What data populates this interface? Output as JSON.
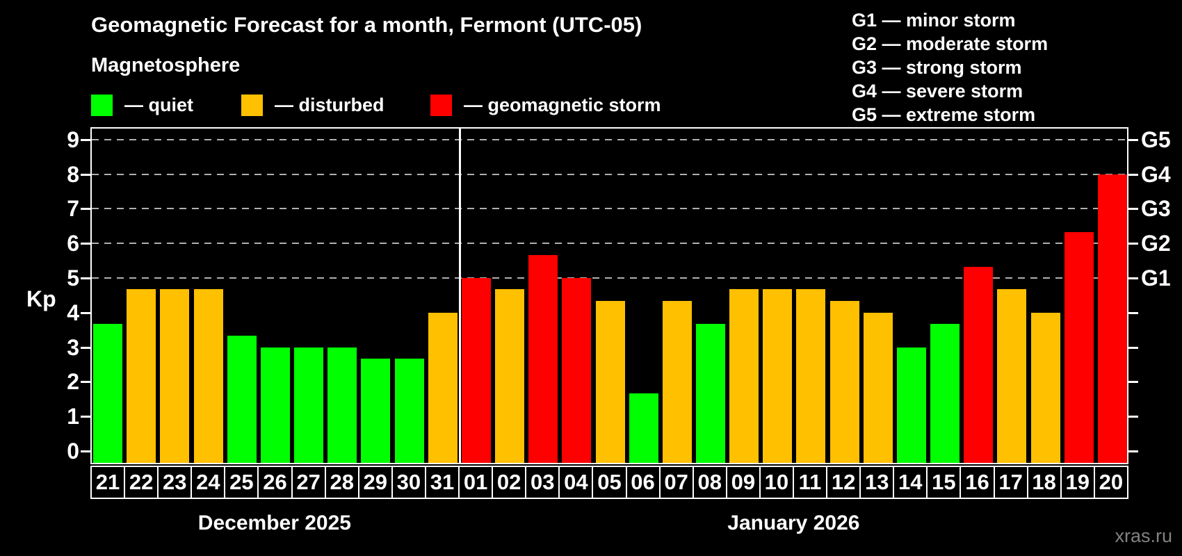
{
  "title": "Geomagnetic Forecast for a month, Fermont (UTC-05)",
  "subtitle": "Magnetosphere",
  "legend": {
    "items": [
      {
        "key": "quiet",
        "label": "— quiet",
        "color": "#00ff00",
        "x": 0
      },
      {
        "key": "disturbed",
        "label": "— disturbed",
        "color": "#ffc000",
        "x": 216
      },
      {
        "key": "storm",
        "label": "— geomagnetic storm",
        "color": "#ff0000",
        "x": 488
      }
    ]
  },
  "g_scale_legend": [
    "G1 — minor storm",
    "G2 — moderate storm",
    "G3 — strong storm",
    "G4 — severe storm",
    "G5 — extreme storm"
  ],
  "watermark": "xras.ru",
  "chart_data": {
    "type": "bar",
    "ylabel": "Kp",
    "ylim": [
      0,
      9
    ],
    "yticks": [
      0,
      1,
      2,
      3,
      4,
      5,
      6,
      7,
      8,
      9
    ],
    "gridlines_at": [
      5,
      6,
      7,
      8,
      9
    ],
    "right_axis_labels": [
      {
        "kp": 5,
        "label": "G1"
      },
      {
        "kp": 6,
        "label": "G2"
      },
      {
        "kp": 7,
        "label": "G3"
      },
      {
        "kp": 8,
        "label": "G4"
      },
      {
        "kp": 9,
        "label": "G5"
      }
    ],
    "legend_note": "grid on (dashed, Kp 5-9); colors: quiet=green, disturbed=orange, storm=red",
    "months": [
      {
        "label": "December 2025",
        "days": 11
      },
      {
        "label": "January 2026",
        "days": 20
      }
    ],
    "categories": [
      "21",
      "22",
      "23",
      "24",
      "25",
      "26",
      "27",
      "28",
      "29",
      "30",
      "31",
      "01",
      "02",
      "03",
      "04",
      "05",
      "06",
      "07",
      "08",
      "09",
      "10",
      "11",
      "12",
      "13",
      "14",
      "15",
      "16",
      "17",
      "18",
      "19",
      "20"
    ],
    "values": [
      3.67,
      4.67,
      4.67,
      4.67,
      3.33,
      3.0,
      3.0,
      3.0,
      2.67,
      2.67,
      4.0,
      5.0,
      4.67,
      5.67,
      5.0,
      4.33,
      1.67,
      4.33,
      3.67,
      4.67,
      4.67,
      4.67,
      4.33,
      4.0,
      3.0,
      3.67,
      5.33,
      4.67,
      4.0,
      6.33,
      8.0
    ],
    "statuses": [
      "quiet",
      "disturbed",
      "disturbed",
      "disturbed",
      "quiet",
      "quiet",
      "quiet",
      "quiet",
      "quiet",
      "quiet",
      "disturbed",
      "storm",
      "disturbed",
      "storm",
      "storm",
      "disturbed",
      "quiet",
      "disturbed",
      "quiet",
      "disturbed",
      "disturbed",
      "disturbed",
      "disturbed",
      "disturbed",
      "quiet",
      "quiet",
      "storm",
      "disturbed",
      "disturbed",
      "storm",
      "storm"
    ]
  }
}
